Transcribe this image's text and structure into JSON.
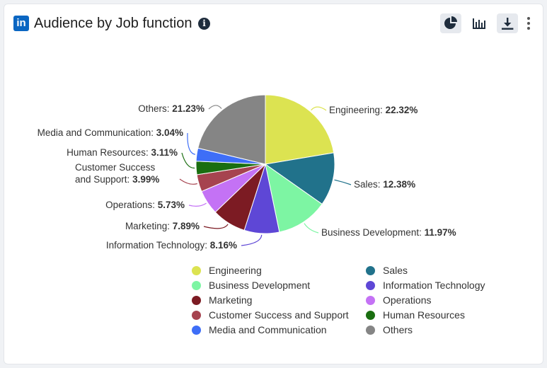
{
  "header": {
    "logo_text": "in",
    "title": "Audience by Job function",
    "info_icon": "i",
    "tools": [
      "pie-chart-icon",
      "bar-chart-icon",
      "download-icon",
      "more-vertical-icon"
    ]
  },
  "chart_data": {
    "type": "pie",
    "title": "Audience by Job function",
    "unit": "%",
    "legend_position": "bottom",
    "slices": [
      {
        "label": "Engineering",
        "value": 22.32,
        "pct_text": "22.32%",
        "color": "#dce351"
      },
      {
        "label": "Sales",
        "value": 12.38,
        "pct_text": "12.38%",
        "color": "#21728b"
      },
      {
        "label": "Business Development",
        "value": 11.97,
        "pct_text": "11.97%",
        "color": "#7df5a3"
      },
      {
        "label": "Information Technology",
        "value": 8.16,
        "pct_text": "8.16%",
        "color": "#5e47d6"
      },
      {
        "label": "Marketing",
        "value": 7.89,
        "pct_text": "7.89%",
        "color": "#7c1b23"
      },
      {
        "label": "Operations",
        "value": 5.73,
        "pct_text": "5.73%",
        "color": "#c472f5"
      },
      {
        "label": "Customer Success and Support",
        "value": 3.99,
        "pct_text": "3.99%",
        "color": "#a6434f"
      },
      {
        "label": "Human Resources",
        "value": 3.11,
        "pct_text": "3.11%",
        "color": "#1a6e10"
      },
      {
        "label": "Media and Communication",
        "value": 3.04,
        "pct_text": "3.04%",
        "color": "#3e6ef7"
      },
      {
        "label": "Others",
        "value": 21.23,
        "pct_text": "21.23%",
        "color": "#858585"
      }
    ]
  }
}
